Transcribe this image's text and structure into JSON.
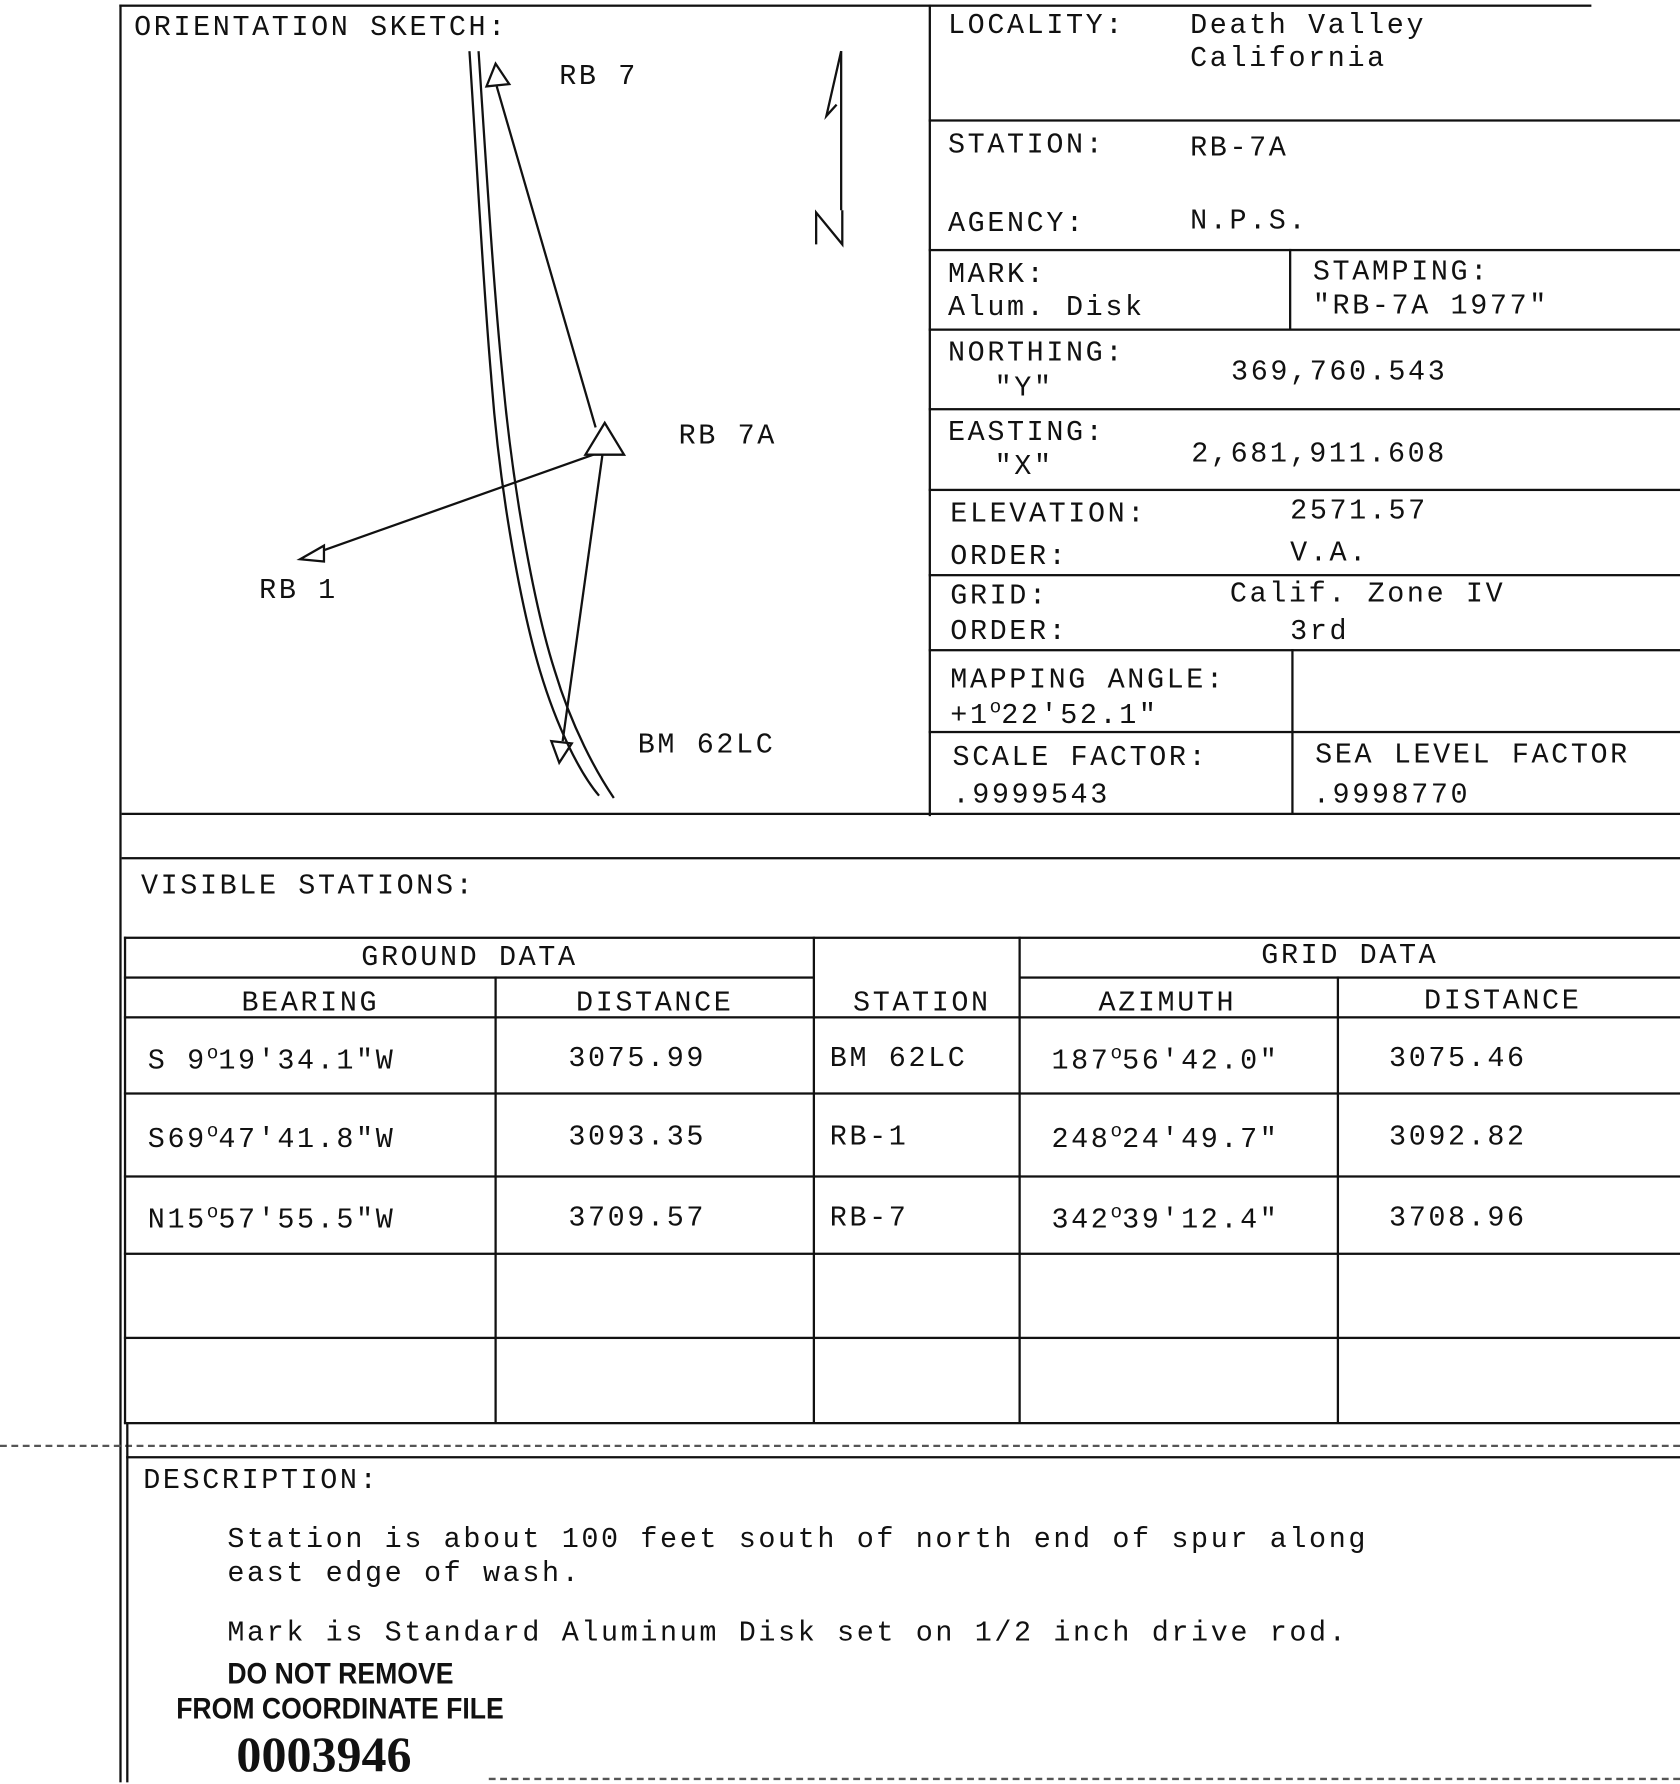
{
  "sketch": {
    "title": "ORIENTATION SKETCH:",
    "labels": {
      "rb7": "RB 7",
      "rb7a": "RB 7A",
      "rb1": "RB 1",
      "bm62lc": "BM 62LC"
    },
    "north_label": "N"
  },
  "info": {
    "locality_label": "LOCALITY:",
    "locality_line1": "Death Valley",
    "locality_line2": "California",
    "station_label": "STATION:",
    "station": "RB-7A",
    "agency_label": "AGENCY:",
    "agency": "N.P.S.",
    "mark_label": "MARK:",
    "mark": "Alum. Disk",
    "stamping_label": "STAMPING:",
    "stamping": "\"RB-7A 1977\"",
    "northing_label": "NORTHING:",
    "northing_sub": "\"Y\"",
    "northing": "369,760.543",
    "easting_label": "EASTING:",
    "easting_sub": "\"X\"",
    "easting": "2,681,911.608",
    "elevation_label": "ELEVATION:",
    "elevation": "2571.57",
    "elev_order_label": "ORDER:",
    "elev_order": "V.A.",
    "grid_label": "GRID:",
    "grid": "Calif. Zone IV",
    "grid_order_label": "ORDER:",
    "grid_order": "3rd",
    "mapping_angle_label": "MAPPING ANGLE:",
    "mapping_angle_deg": "+1",
    "mapping_angle_rest": "22'52.1\"",
    "scale_factor_label": "SCALE FACTOR:",
    "scale_factor": ".9999543",
    "sea_level_factor_label": "SEA LEVEL FACTOR",
    "sea_level_factor": ".9998770"
  },
  "visible_stations": {
    "title": "VISIBLE STATIONS:",
    "ground_header": "GROUND DATA",
    "grid_header": "GRID DATA",
    "columns": [
      "BEARING",
      "DISTANCE",
      "STATION",
      "AZIMUTH",
      "DISTANCE"
    ],
    "rows": [
      {
        "bearing_pre": "S 9",
        "bearing_post": "19'34.1\"W",
        "ground_distance": "3075.99",
        "station": "BM 62LC",
        "azimuth_pre": "187",
        "azimuth_post": "56'42.0\"",
        "grid_distance": "3075.46"
      },
      {
        "bearing_pre": "S69",
        "bearing_post": "47'41.8\"W",
        "ground_distance": "3093.35",
        "station": "RB-1",
        "azimuth_pre": "248",
        "azimuth_post": "24'49.7\"",
        "grid_distance": "3092.82"
      },
      {
        "bearing_pre": "N15",
        "bearing_post": "57'55.5\"W",
        "ground_distance": "3709.57",
        "station": "RB-7",
        "azimuth_pre": "342",
        "azimuth_post": "39'12.4\"",
        "grid_distance": "3708.96"
      }
    ],
    "degree_symbol": "o"
  },
  "description": {
    "title": "DESCRIPTION:",
    "line1": "Station is about 100 feet south of north end of spur along",
    "line2": "east edge of wash.",
    "line3": "Mark is Standard Aluminum Disk set on 1/2 inch drive rod."
  },
  "stamp": {
    "line1": "DO NOT REMOVE",
    "line2": "FROM COORDINATE FILE",
    "number": "0003946"
  }
}
